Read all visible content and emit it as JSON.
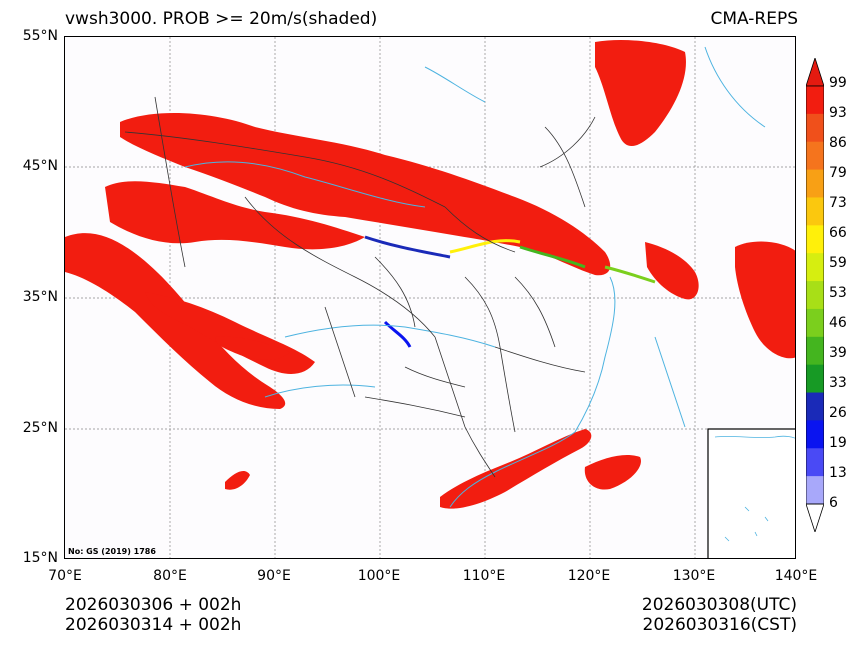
{
  "header": {
    "title_left": "vwsh3000. PROB >= 20m/s(shaded)",
    "title_right": "CMA-REPS"
  },
  "axes": {
    "lat_labels": [
      "55°N",
      "45°N",
      "35°N",
      "25°N",
      "15°N"
    ],
    "lon_labels": [
      "70°E",
      "80°E",
      "90°E",
      "100°E",
      "110°E",
      "120°E",
      "130°E",
      "140°E"
    ]
  },
  "colorbar": {
    "labels": [
      "99",
      "93",
      "86",
      "79",
      "73",
      "66",
      "59",
      "53",
      "46",
      "39",
      "33",
      "26",
      "19",
      "13",
      "6"
    ],
    "colors": [
      "#f21d10",
      "#f0501b",
      "#f5741d",
      "#f8a015",
      "#fbc80e",
      "#fff00a",
      "#d6ee10",
      "#a8df17",
      "#7bcf1d",
      "#44b51f",
      "#179a25",
      "#1a2ab8",
      "#0a14f0",
      "#4a4af5",
      "#a8a8fa"
    ],
    "over_color": "#e51a10",
    "under_color": "#ffffff"
  },
  "map": {
    "note": "No: GS (2019) 1786",
    "shade_color": "#f21d10",
    "border_color": "#333333",
    "water_color": "#4db3e0"
  },
  "footer": {
    "left_line1": "2026030306  +  002h",
    "left_line2": "2026030314  +  002h",
    "right_line1": "2026030308(UTC)",
    "right_line2": "2026030316(CST)"
  }
}
